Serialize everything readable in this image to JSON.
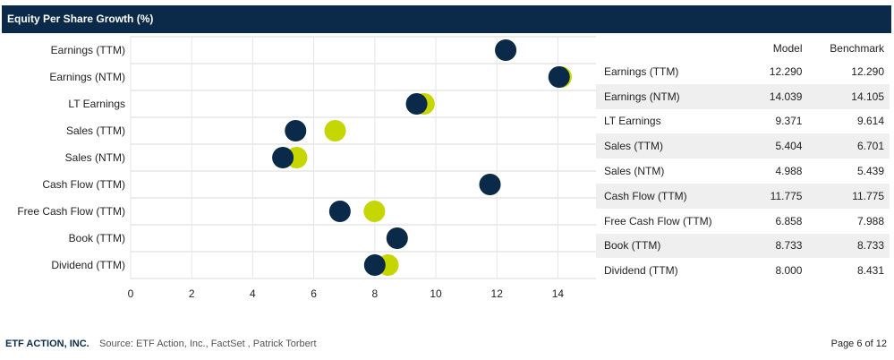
{
  "title": "Equity Per Share Growth (%)",
  "colors": {
    "model": "#0b2a4a",
    "benchmark": "#c5d600",
    "header": "#0b2a4a"
  },
  "table": {
    "headers": {
      "model": "Model",
      "benchmark": "Benchmark"
    },
    "rows": [
      {
        "label": "Earnings (TTM)",
        "model": "12.290",
        "benchmark": "12.290"
      },
      {
        "label": "Earnings (NTM)",
        "model": "14.039",
        "benchmark": "14.105"
      },
      {
        "label": "LT Earnings",
        "model": "9.371",
        "benchmark": "9.614"
      },
      {
        "label": "Sales (TTM)",
        "model": "5.404",
        "benchmark": "6.701"
      },
      {
        "label": "Sales (NTM)",
        "model": "4.988",
        "benchmark": "5.439"
      },
      {
        "label": "Cash Flow (TTM)",
        "model": "11.775",
        "benchmark": "11.775"
      },
      {
        "label": "Free Cash Flow (TTM)",
        "model": "6.858",
        "benchmark": "7.988"
      },
      {
        "label": "Book (TTM)",
        "model": "8.733",
        "benchmark": "8.733"
      },
      {
        "label": "Dividend (TTM)",
        "model": "8.000",
        "benchmark": "8.431"
      }
    ]
  },
  "chart_data": {
    "type": "scatter",
    "title": "Equity Per Share Growth (%)",
    "categories": [
      "Earnings (TTM)",
      "Earnings (NTM)",
      "LT Earnings",
      "Sales (TTM)",
      "Sales (NTM)",
      "Cash Flow (TTM)",
      "Free Cash Flow (TTM)",
      "Book (TTM)",
      "Dividend (TTM)"
    ],
    "series": [
      {
        "name": "Model",
        "values": [
          12.29,
          14.039,
          9.371,
          5.404,
          4.988,
          11.775,
          6.858,
          8.733,
          8.0
        ]
      },
      {
        "name": "Benchmark",
        "values": [
          12.29,
          14.105,
          9.614,
          6.701,
          5.439,
          11.775,
          7.988,
          8.733,
          8.431
        ]
      }
    ],
    "xlim": [
      0,
      15
    ],
    "xticks": [
      "0",
      "2",
      "4",
      "6",
      "8",
      "10",
      "12",
      "14"
    ],
    "grid": true,
    "legend": "none"
  },
  "footer": {
    "brand": "ETF ACTION, INC.",
    "source": "Source: ETF Action, Inc., FactSet , Patrick Torbert",
    "page": "Page 6 of 12"
  }
}
